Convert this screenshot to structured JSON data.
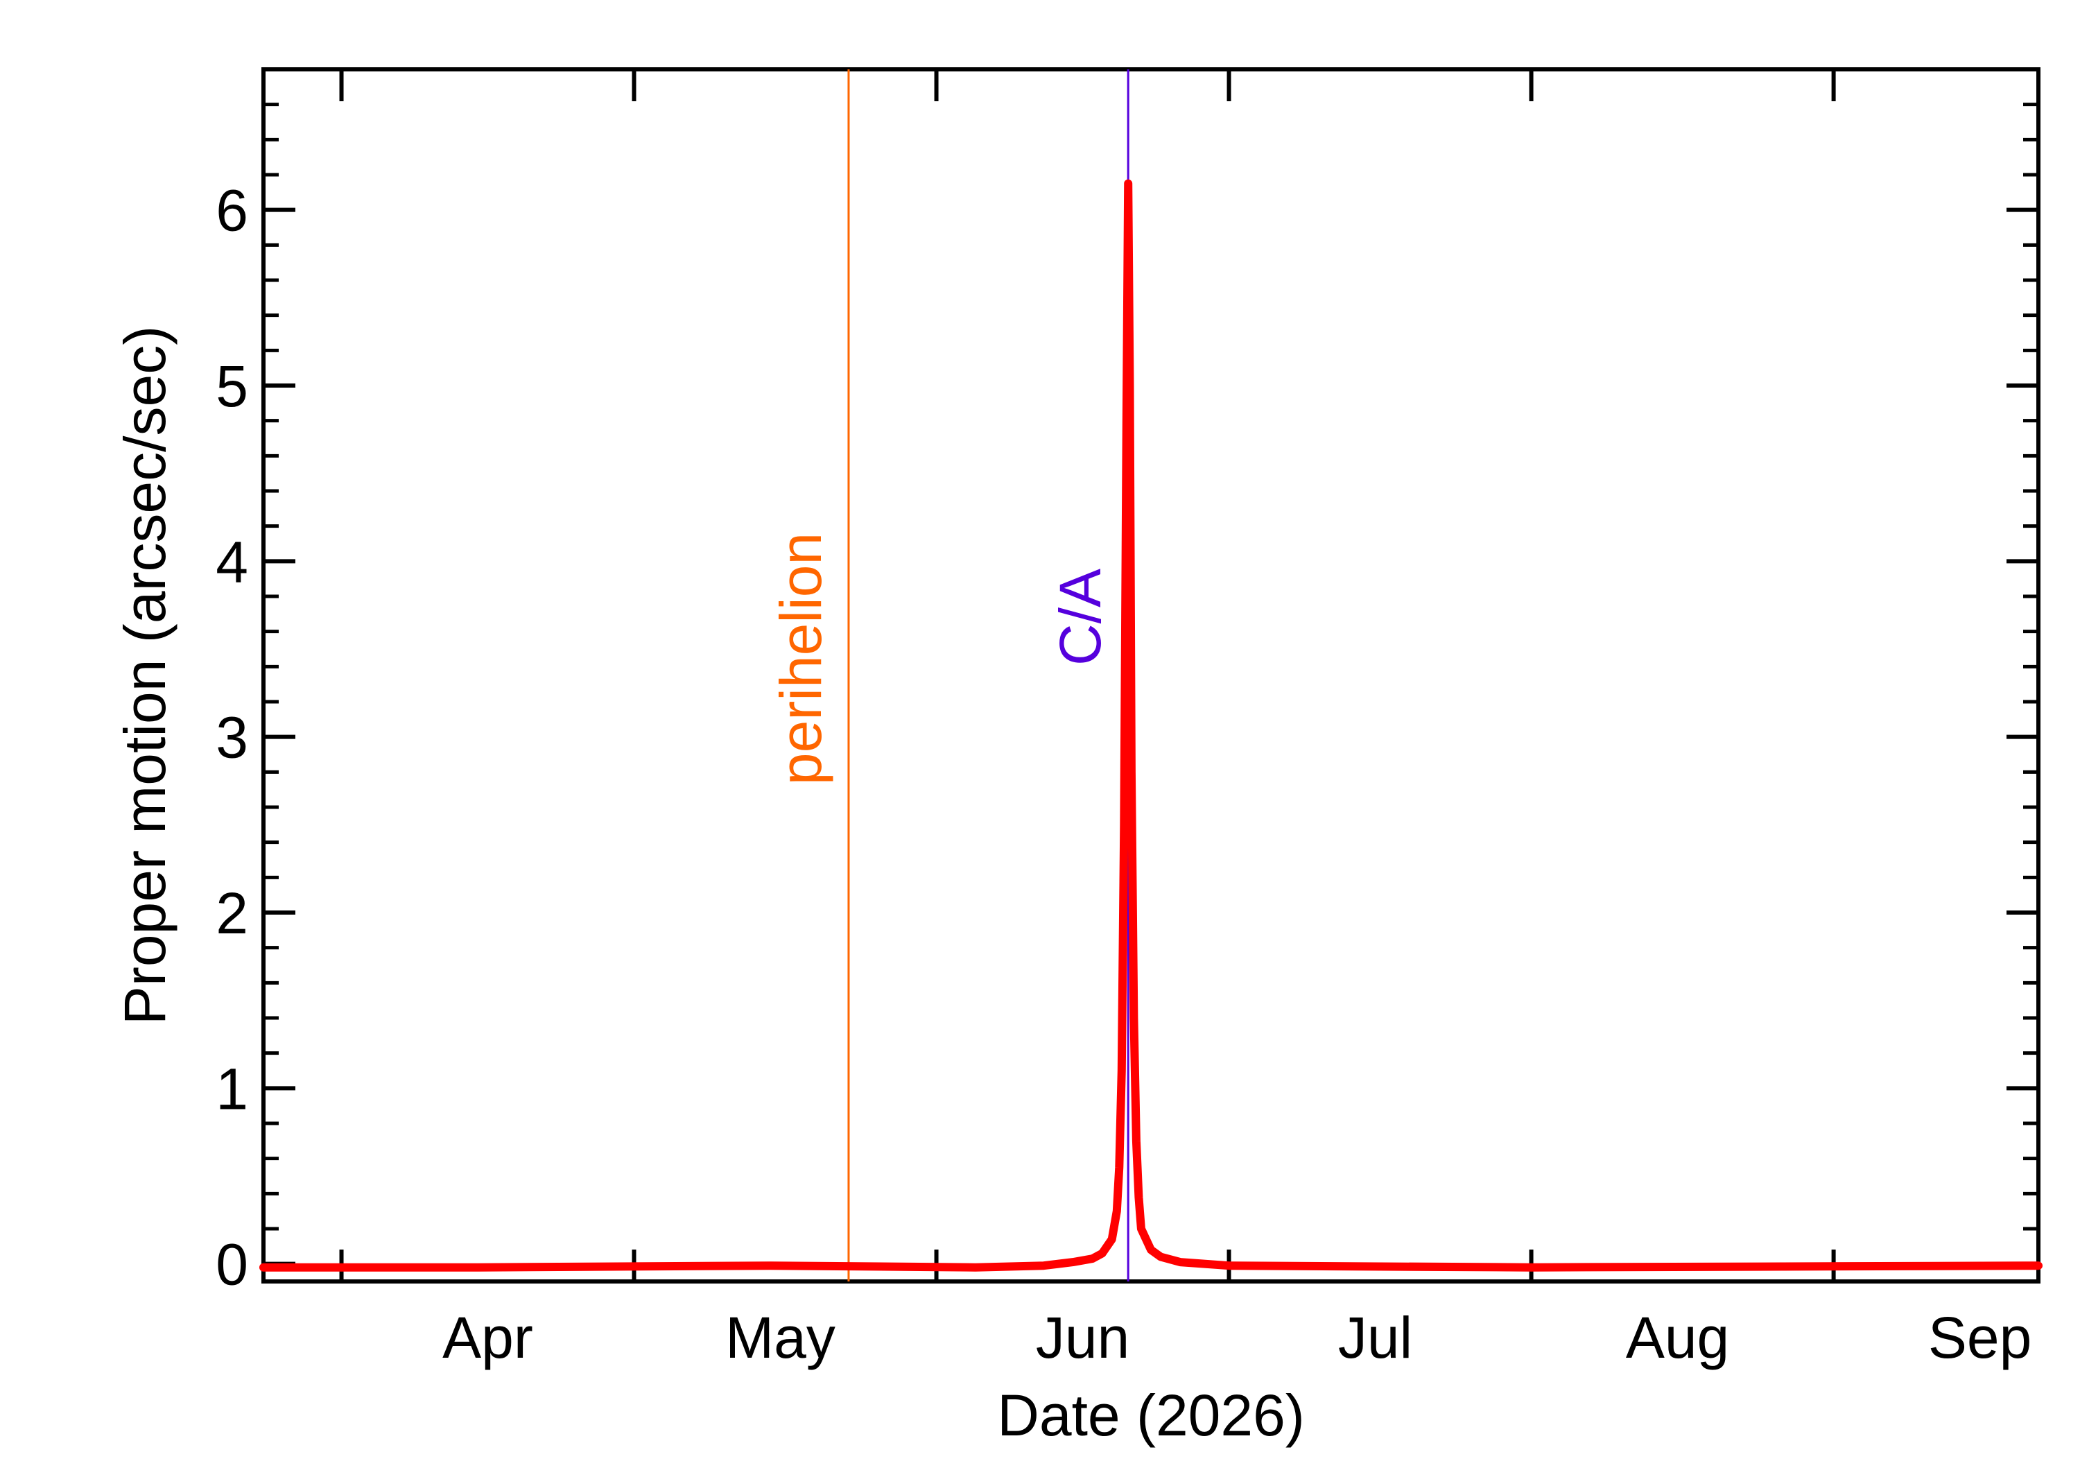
{
  "chart_data": {
    "type": "line",
    "title": "",
    "xlabel": "Date (2026)",
    "ylabel": "Proper motion (arcsec/sec)",
    "xlim": [
      "2026-03-24",
      "2026-09-22"
    ],
    "ylim": [
      -0.1,
      6.8
    ],
    "x_major_ticks": [
      "2026-04-01",
      "2026-05-01",
      "2026-06-01",
      "2026-07-01",
      "2026-08-01",
      "2026-09-01"
    ],
    "x_tick_labels": [
      {
        "label": "Apr",
        "date": "2026-04-16"
      },
      {
        "label": "May",
        "date": "2026-05-16"
      },
      {
        "label": "Jun",
        "date": "2026-06-16"
      },
      {
        "label": "Jul",
        "date": "2026-07-16"
      },
      {
        "label": "Aug",
        "date": "2026-08-16"
      },
      {
        "label": "Sep",
        "date": "2026-09-16"
      }
    ],
    "y_ticks": [
      0,
      1,
      2,
      3,
      4,
      5,
      6
    ],
    "y_minor_step": 0.2,
    "grid": false,
    "series": [
      {
        "color": "#ff0000",
        "points": [
          [
            "2026-03-24",
            -0.02
          ],
          [
            "2026-04-15",
            -0.02
          ],
          [
            "2026-05-15",
            -0.01
          ],
          [
            "2026-06-05",
            -0.02
          ],
          [
            "2026-06-12",
            -0.01
          ],
          [
            "2026-06-15",
            0.01
          ],
          [
            "2026-06-17",
            0.03
          ],
          [
            "2026-06-18",
            0.06
          ],
          [
            "2026-06-19",
            0.14
          ],
          [
            "2026-06-19 12:00",
            0.3
          ],
          [
            "2026-06-19 18:00",
            0.55
          ],
          [
            "2026-06-20",
            1.1
          ],
          [
            "2026-06-20 06:00",
            2.5
          ],
          [
            "2026-06-20 12:00",
            4.8
          ],
          [
            "2026-06-20 16:00",
            6.15
          ],
          [
            "2026-06-20 20:00",
            5.0
          ],
          [
            "2026-06-21",
            2.8
          ],
          [
            "2026-06-21 06:00",
            1.4
          ],
          [
            "2026-06-21 12:00",
            0.7
          ],
          [
            "2026-06-21 18:00",
            0.38
          ],
          [
            "2026-06-22",
            0.2
          ],
          [
            "2026-06-23",
            0.08
          ],
          [
            "2026-06-24",
            0.04
          ],
          [
            "2026-06-26",
            0.01
          ],
          [
            "2026-07-01",
            -0.01
          ],
          [
            "2026-08-01",
            -0.02
          ],
          [
            "2026-09-22",
            -0.01
          ]
        ]
      }
    ],
    "annotations": [
      {
        "text": "perihelion",
        "date": "2026-05-23",
        "color": "#ff6600"
      },
      {
        "text": "C/A",
        "date": "2026-06-20 16:00",
        "color": "#5500dd"
      }
    ],
    "colors": {
      "axes": "#000000",
      "curve": "#ff0000",
      "perihelion": "#ff6600",
      "closest_approach": "#5500dd"
    }
  }
}
